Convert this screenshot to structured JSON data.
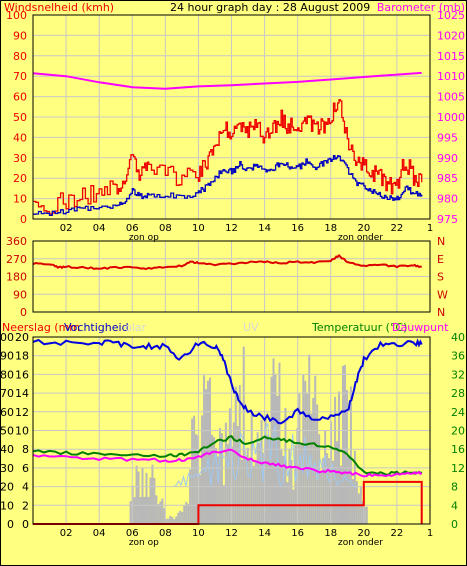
{
  "chart_data": [
    {
      "type": "line",
      "title": "24 hour graph day : 28 August 2009",
      "left_axis_label": "Windsnelheid (kmh)",
      "right_axis_label": "Barometer (mb)",
      "x_ticks": [
        "02",
        "04",
        "06",
        "08",
        "10",
        "12",
        "14",
        "16",
        "18",
        "20",
        "22",
        "1"
      ],
      "x_annotations": [
        "zon op",
        "zon onder"
      ],
      "left_ticks": [
        "0",
        "10",
        "20",
        "30",
        "40",
        "50",
        "60",
        "70",
        "80",
        "90",
        "100"
      ],
      "right_ticks": [
        "975",
        "980",
        "985",
        "990",
        "995",
        "1000",
        "1005",
        "1010",
        "1015",
        "1020",
        "1025"
      ],
      "ylim_left": [
        0,
        100
      ],
      "ylim_right": [
        975,
        1025
      ],
      "series": [
        {
          "color": "#ee0000",
          "x": [
            0,
            1,
            2,
            3,
            4,
            5,
            5.5,
            6,
            6.5,
            7,
            8,
            9,
            10,
            10.5,
            11,
            11.5,
            12,
            12.5,
            13,
            13.5,
            14,
            14.5,
            15,
            15.5,
            16,
            16.5,
            17,
            17.5,
            18,
            18.5,
            19,
            19.5,
            20,
            20.5,
            21,
            21.5,
            22,
            22.5,
            23,
            23.5
          ],
          "values": [
            5,
            7,
            9,
            11,
            13,
            16,
            18,
            30,
            22,
            24,
            22,
            20,
            22,
            28,
            37,
            47,
            41,
            48,
            43,
            46,
            41,
            43,
            49,
            45,
            45,
            50,
            44,
            46,
            50,
            57,
            37,
            28,
            26,
            23,
            20,
            17,
            16,
            29,
            21,
            18
          ]
        },
        {
          "color": "#0000c0",
          "x": [
            0,
            1,
            2,
            3,
            4,
            5,
            5.5,
            6,
            6.5,
            7,
            8,
            9,
            10,
            10.5,
            11,
            11.5,
            12,
            12.5,
            13,
            13.5,
            14,
            14.5,
            15,
            15.5,
            16,
            16.5,
            17,
            17.5,
            18,
            18.5,
            19,
            19.5,
            20,
            20.5,
            21,
            21.5,
            22,
            22.5,
            23,
            23.5
          ],
          "values": [
            2,
            3,
            4,
            5,
            6,
            7,
            8,
            14,
            11,
            12,
            12,
            11,
            13,
            16,
            20,
            25,
            23,
            27,
            24,
            26,
            23,
            24,
            28,
            26,
            25,
            28,
            25,
            27,
            29,
            31,
            24,
            18,
            16,
            14,
            12,
            10,
            10,
            15,
            13,
            12
          ]
        },
        {
          "color": "#ff00ff",
          "axis": "right",
          "x": [
            0,
            2,
            4,
            6,
            8,
            10,
            12,
            14,
            16,
            18,
            19,
            20,
            22,
            23.5
          ],
          "values": [
            1010.7,
            1010,
            1008.5,
            1007.3,
            1006.9,
            1007.5,
            1007.8,
            1008.2,
            1008.6,
            1009.2,
            1009.5,
            1009.8,
            1010.4,
            1010.8
          ]
        }
      ]
    },
    {
      "type": "line",
      "right_ticks": [
        "N",
        "W",
        "S",
        "E",
        "N"
      ],
      "left_ticks": [
        "0",
        "90",
        "180",
        "270",
        "360"
      ],
      "ylim": [
        0,
        360
      ],
      "series": [
        {
          "color": "#dd0000",
          "x": [
            0,
            1,
            1.5,
            2,
            3,
            4,
            5,
            6,
            7,
            8,
            9,
            9.5,
            10,
            11,
            12,
            13,
            14,
            15,
            16,
            17,
            18,
            18.5,
            19,
            20,
            21,
            22,
            23,
            23.5
          ],
          "values": [
            245,
            245,
            225,
            230,
            225,
            220,
            225,
            225,
            220,
            228,
            235,
            255,
            248,
            240,
            245,
            252,
            255,
            248,
            255,
            250,
            262,
            285,
            255,
            232,
            240,
            230,
            236,
            228
          ]
        }
      ]
    },
    {
      "type": "line",
      "labels": [
        "Neerslag (mm",
        "Vochtigheid",
        "olar",
        "UV",
        "Temperatuur (°C)",
        "Dauwpunt"
      ],
      "x_ticks": [
        "02",
        "04",
        "06",
        "08",
        "10",
        "12",
        "14",
        "16",
        "18",
        "20",
        "22",
        "1"
      ],
      "x_annotations": [
        "zon op",
        "zon onder"
      ],
      "left_ticks_humidity": [
        "0",
        "10",
        "20",
        "30",
        "40",
        "50",
        "60",
        "70",
        "80",
        "90",
        "100"
      ],
      "left_ticks_rain": [
        "0",
        "2",
        "4",
        "6",
        "8",
        "10",
        "12",
        "14",
        "16",
        "18",
        "20"
      ],
      "right_ticks": [
        "0",
        "4",
        "8",
        "12",
        "16",
        "20",
        "24",
        "28",
        "32",
        "36",
        "40"
      ],
      "series": [
        {
          "color": "#0000e0",
          "name": "Vochtigheid",
          "x": [
            0,
            2,
            4,
            5,
            6,
            7,
            8,
            9,
            10,
            11,
            11.5,
            12,
            12.5,
            13,
            14,
            15,
            16,
            17,
            18,
            19,
            19.5,
            20,
            21,
            22,
            23,
            23.5
          ],
          "values": [
            97,
            97,
            97,
            97,
            95,
            95,
            95,
            88,
            97,
            95,
            88,
            75,
            65,
            60,
            57,
            55,
            60,
            56,
            58,
            60,
            75,
            88,
            96,
            96,
            97,
            96
          ]
        },
        {
          "color": "#008000",
          "name": "Temperatuur",
          "axis": "right",
          "x": [
            0,
            2,
            4,
            6,
            8,
            9,
            10,
            11,
            12,
            13,
            14,
            15,
            16,
            17,
            18,
            19,
            20,
            21,
            22,
            23,
            23.5
          ],
          "values": [
            15.5,
            15.2,
            15,
            14.8,
            14.6,
            14.8,
            15.5,
            17.5,
            18.5,
            17,
            18.5,
            18,
            17.5,
            17,
            16.5,
            15,
            11,
            10.8,
            10.9,
            11,
            11.1
          ]
        },
        {
          "color": "#ff00ff",
          "name": "Dauwpunt",
          "axis": "right",
          "x": [
            0,
            2,
            4,
            6,
            8,
            9,
            10,
            11,
            12,
            13,
            14,
            15,
            16,
            17,
            18,
            19,
            20,
            21,
            22,
            23,
            23.5
          ],
          "values": [
            14.5,
            14.2,
            14,
            13.8,
            13.6,
            13.8,
            14.2,
            15.5,
            15.8,
            14,
            13,
            12.5,
            12,
            11.5,
            11.2,
            11,
            10.5,
            10.2,
            10.5,
            10.8,
            10.9
          ]
        },
        {
          "color": "#ee0000",
          "name": "Neerslag",
          "axis": "rain",
          "x": [
            0,
            7,
            8,
            9,
            9.5,
            10,
            18,
            19,
            19.5,
            20,
            21,
            23,
            23.4,
            23.5
          ],
          "values": [
            0,
            0,
            0,
            0,
            0,
            2,
            2,
            2,
            2,
            4.5,
            4.5,
            4.5,
            4.5,
            0
          ]
        }
      ]
    }
  ]
}
